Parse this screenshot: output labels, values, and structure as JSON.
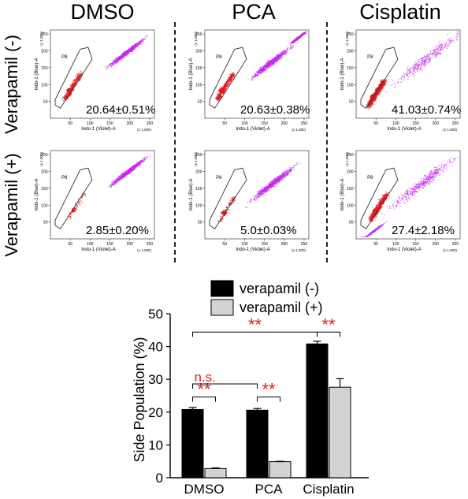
{
  "figure": {
    "columns": [
      "DMSO",
      "PCA",
      "Cisplatin"
    ],
    "rows": [
      "Verapamil (-)",
      "Verapamil (+)"
    ],
    "gate_label": "P8",
    "x_axis_label": "Indo-1 (Violet)-A",
    "y_axis_label": "Indo-1 (Blue)-A",
    "axis_scale_note": "(x 1,000)",
    "x_ticks": [
      "50",
      "100",
      "150",
      "200",
      "250"
    ],
    "y_ticks": [
      "50",
      "100",
      "150",
      "200",
      "250"
    ],
    "colors": {
      "side_population": "#e8191c",
      "main_population": "#c428ee"
    }
  },
  "chart_data": [
    {
      "type": "scatter",
      "title": "DMSO / Verapamil (-)",
      "annotation": "20.64±0.51%",
      "xlabel": "Indo-1 (Violet)-A",
      "ylabel": "Indo-1 (Blue)-A",
      "xlim": [
        0,
        262
      ],
      "ylim": [
        0,
        262
      ],
      "gate": "P8",
      "side_population_percent": 20.64
    },
    {
      "type": "scatter",
      "title": "PCA / Verapamil (-)",
      "annotation": "20.63±0.38%",
      "xlabel": "Indo-1 (Violet)-A",
      "ylabel": "Indo-1 (Blue)-A",
      "xlim": [
        0,
        262
      ],
      "ylim": [
        0,
        262
      ],
      "gate": "P8",
      "side_population_percent": 20.63
    },
    {
      "type": "scatter",
      "title": "Cisplatin / Verapamil (-)",
      "annotation": "41.03±0.74%",
      "xlabel": "Indo-1 (Violet)-A",
      "ylabel": "Indo-1 (Blue)-A",
      "xlim": [
        0,
        262
      ],
      "ylim": [
        0,
        262
      ],
      "gate": "P8",
      "side_population_percent": 41.03
    },
    {
      "type": "scatter",
      "title": "DMSO / Verapamil (+)",
      "annotation": "2.85±0.20%",
      "xlabel": "Indo-1 (Violet)-A",
      "ylabel": "Indo-1 (Blue)-A",
      "xlim": [
        0,
        262
      ],
      "ylim": [
        0,
        262
      ],
      "gate": "P8",
      "side_population_percent": 2.85
    },
    {
      "type": "scatter",
      "title": "PCA / Verapamil (+)",
      "annotation": "5.0±0.03%",
      "xlabel": "Indo-1 (Violet)-A",
      "ylabel": "Indo-1 (Blue)-A",
      "xlim": [
        0,
        262
      ],
      "ylim": [
        0,
        262
      ],
      "gate": "P8",
      "side_population_percent": 5.0
    },
    {
      "type": "scatter",
      "title": "Cisplatin / Verapamil (+)",
      "annotation": "27.4±2.18%",
      "xlabel": "Indo-1 (Violet)-A",
      "ylabel": "Indo-1 (Blue)-A",
      "xlim": [
        0,
        262
      ],
      "ylim": [
        0,
        262
      ],
      "gate": "P8",
      "side_population_percent": 27.4
    },
    {
      "type": "bar",
      "title": "",
      "categories": [
        "DMSO",
        "PCA",
        "Cisplatin"
      ],
      "series": [
        {
          "name": "verapamil (-)",
          "values": [
            20.8,
            20.6,
            40.8
          ],
          "errors": [
            0.6,
            0.5,
            0.8
          ],
          "color": "#000000"
        },
        {
          "name": "verapamil (+)",
          "values": [
            2.8,
            4.9,
            27.6
          ],
          "errors": [
            0.2,
            0.1,
            2.6
          ],
          "color": "#d3d3d3"
        }
      ],
      "xlabel": "",
      "ylabel": "Side Population (%)",
      "ylim": [
        0,
        50
      ],
      "yticks": [
        0,
        10,
        20,
        30,
        40,
        50
      ],
      "legend_position": "top",
      "grid": false,
      "significance": [
        {
          "label": "**",
          "compare": "DMSO verapamil (-) vs DMSO verapamil (+)",
          "color": "#e8191c"
        },
        {
          "label": "**",
          "compare": "PCA verapamil (-) vs PCA verapamil (+)",
          "color": "#e8191c"
        },
        {
          "label": "**",
          "compare": "Cisplatin verapamil (-) vs Cisplatin verapamil (+)",
          "color": "#e8191c"
        },
        {
          "label": "**",
          "compare": "DMSO verapamil (-) vs Cisplatin verapamil (-)",
          "color": "#e8191c"
        },
        {
          "label": "n.s.",
          "compare": "DMSO verapamil (-) vs PCA verapamil (-)",
          "color": "#e8191c"
        }
      ]
    }
  ]
}
